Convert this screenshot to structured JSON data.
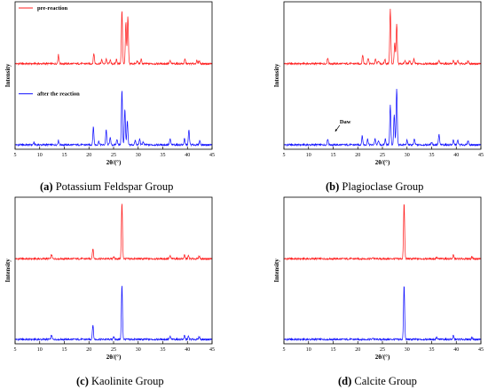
{
  "colors": {
    "pre": "#ff1f1f",
    "after": "#1414ff",
    "axis": "#000000"
  },
  "chart_data": [
    {
      "type": "line",
      "panel_letter": "(a)",
      "caption": "Potassium Feldspar Group",
      "xlabel": "2θ/(°)",
      "ylabel": "Intensity",
      "xlim": [
        5,
        45
      ],
      "xticks": [
        5,
        10,
        15,
        20,
        25,
        30,
        35,
        40,
        45
      ],
      "legend_position": "top-left",
      "series": [
        {
          "name": "pre-reaction",
          "color": "#ff1f1f",
          "offset": 0.58,
          "peaks": [
            [
              13.8,
              0.06
            ],
            [
              21.0,
              0.07
            ],
            [
              22.6,
              0.025
            ],
            [
              23.5,
              0.03
            ],
            [
              24.3,
              0.025
            ],
            [
              25.6,
              0.03
            ],
            [
              26.7,
              0.36
            ],
            [
              27.5,
              0.28
            ],
            [
              27.9,
              0.32
            ],
            [
              29.8,
              0.02
            ],
            [
              30.6,
              0.03
            ],
            [
              36.5,
              0.02
            ],
            [
              39.5,
              0.03
            ],
            [
              41.9,
              0.02
            ],
            [
              42.4,
              0.02
            ]
          ]
        },
        {
          "name": "after the reaction",
          "color": "#1414ff",
          "offset": 0.03,
          "peaks": [
            [
              8.8,
              0.015
            ],
            [
              13.8,
              0.03
            ],
            [
              20.9,
              0.12
            ],
            [
              22.0,
              0.025
            ],
            [
              23.5,
              0.1
            ],
            [
              24.3,
              0.05
            ],
            [
              25.7,
              0.04
            ],
            [
              26.7,
              0.37
            ],
            [
              27.3,
              0.24
            ],
            [
              27.8,
              0.16
            ],
            [
              29.4,
              0.03
            ],
            [
              30.3,
              0.04
            ],
            [
              31.0,
              0.02
            ],
            [
              36.5,
              0.04
            ],
            [
              39.4,
              0.04
            ],
            [
              40.3,
              0.1
            ],
            [
              42.5,
              0.03
            ]
          ]
        }
      ],
      "annotations": []
    },
    {
      "type": "line",
      "panel_letter": "(b)",
      "caption": "Plagioclase Group",
      "xlabel": "2θ/(°)",
      "ylabel": "Intensity",
      "xlim": [
        5,
        45
      ],
      "xticks": [
        5,
        10,
        15,
        20,
        25,
        30,
        35,
        40,
        45
      ],
      "series": [
        {
          "name": "",
          "color": "#ff1f1f",
          "offset": 0.58,
          "peaks": [
            [
              13.9,
              0.04
            ],
            [
              21.0,
              0.06
            ],
            [
              22.1,
              0.04
            ],
            [
              23.6,
              0.03
            ],
            [
              24.2,
              0.02
            ],
            [
              25.5,
              0.03
            ],
            [
              26.6,
              0.37
            ],
            [
              27.5,
              0.14
            ],
            [
              27.9,
              0.27
            ],
            [
              29.6,
              0.02
            ],
            [
              30.5,
              0.02
            ],
            [
              31.4,
              0.03
            ],
            [
              36.5,
              0.02
            ],
            [
              39.4,
              0.02
            ],
            [
              40.3,
              0.02
            ],
            [
              42.4,
              0.02
            ]
          ]
        },
        {
          "name": "",
          "color": "#1414ff",
          "offset": 0.03,
          "peaks": [
            [
              13.9,
              0.04
            ],
            [
              20.9,
              0.06
            ],
            [
              22.0,
              0.04
            ],
            [
              23.5,
              0.04
            ],
            [
              24.2,
              0.03
            ],
            [
              25.6,
              0.04
            ],
            [
              26.6,
              0.27
            ],
            [
              27.4,
              0.21
            ],
            [
              27.9,
              0.38
            ],
            [
              30.0,
              0.03
            ],
            [
              31.5,
              0.04
            ],
            [
              35.0,
              0.02
            ],
            [
              36.5,
              0.07
            ],
            [
              39.4,
              0.03
            ],
            [
              40.3,
              0.03
            ],
            [
              42.4,
              0.03
            ]
          ]
        }
      ],
      "annotations": [
        {
          "text": "Daw",
          "x": 15.6,
          "y": 0.12
        }
      ]
    },
    {
      "type": "line",
      "panel_letter": "(c)",
      "caption": "Kaolinite Group",
      "xlabel": "2θ/(°)",
      "ylabel": "Intensity",
      "xlim": [
        5,
        45
      ],
      "xticks": [
        5,
        10,
        15,
        20,
        25,
        30,
        35,
        40,
        45
      ],
      "series": [
        {
          "name": "",
          "color": "#ff1f1f",
          "offset": 0.58,
          "peaks": [
            [
              12.4,
              0.03
            ],
            [
              20.8,
              0.07
            ],
            [
              25.0,
              0.015
            ],
            [
              26.7,
              0.38
            ],
            [
              36.5,
              0.02
            ],
            [
              39.4,
              0.025
            ],
            [
              40.2,
              0.02
            ],
            [
              42.4,
              0.02
            ]
          ]
        },
        {
          "name": "",
          "color": "#1414ff",
          "offset": 0.03,
          "peaks": [
            [
              12.4,
              0.03
            ],
            [
              20.8,
              0.1
            ],
            [
              25.0,
              0.02
            ],
            [
              26.7,
              0.37
            ],
            [
              36.5,
              0.02
            ],
            [
              39.4,
              0.025
            ],
            [
              40.2,
              0.02
            ],
            [
              42.4,
              0.02
            ]
          ]
        }
      ],
      "annotations": []
    },
    {
      "type": "line",
      "panel_letter": "(d)",
      "caption": "Calcite Group",
      "xlabel": "2θ/(°)",
      "ylabel": "Intensity",
      "xlim": [
        5,
        45
      ],
      "xticks": [
        5,
        10,
        15,
        20,
        25,
        30,
        35,
        40,
        45
      ],
      "series": [
        {
          "name": "",
          "color": "#ff1f1f",
          "offset": 0.58,
          "peaks": [
            [
              23.1,
              0.01
            ],
            [
              29.4,
              0.38
            ],
            [
              36.0,
              0.01
            ],
            [
              39.4,
              0.025
            ],
            [
              43.2,
              0.015
            ]
          ]
        },
        {
          "name": "",
          "color": "#1414ff",
          "offset": 0.03,
          "peaks": [
            [
              23.1,
              0.01
            ],
            [
              29.4,
              0.37
            ],
            [
              36.0,
              0.015
            ],
            [
              39.4,
              0.025
            ],
            [
              43.2,
              0.015
            ]
          ]
        }
      ],
      "annotations": []
    }
  ]
}
